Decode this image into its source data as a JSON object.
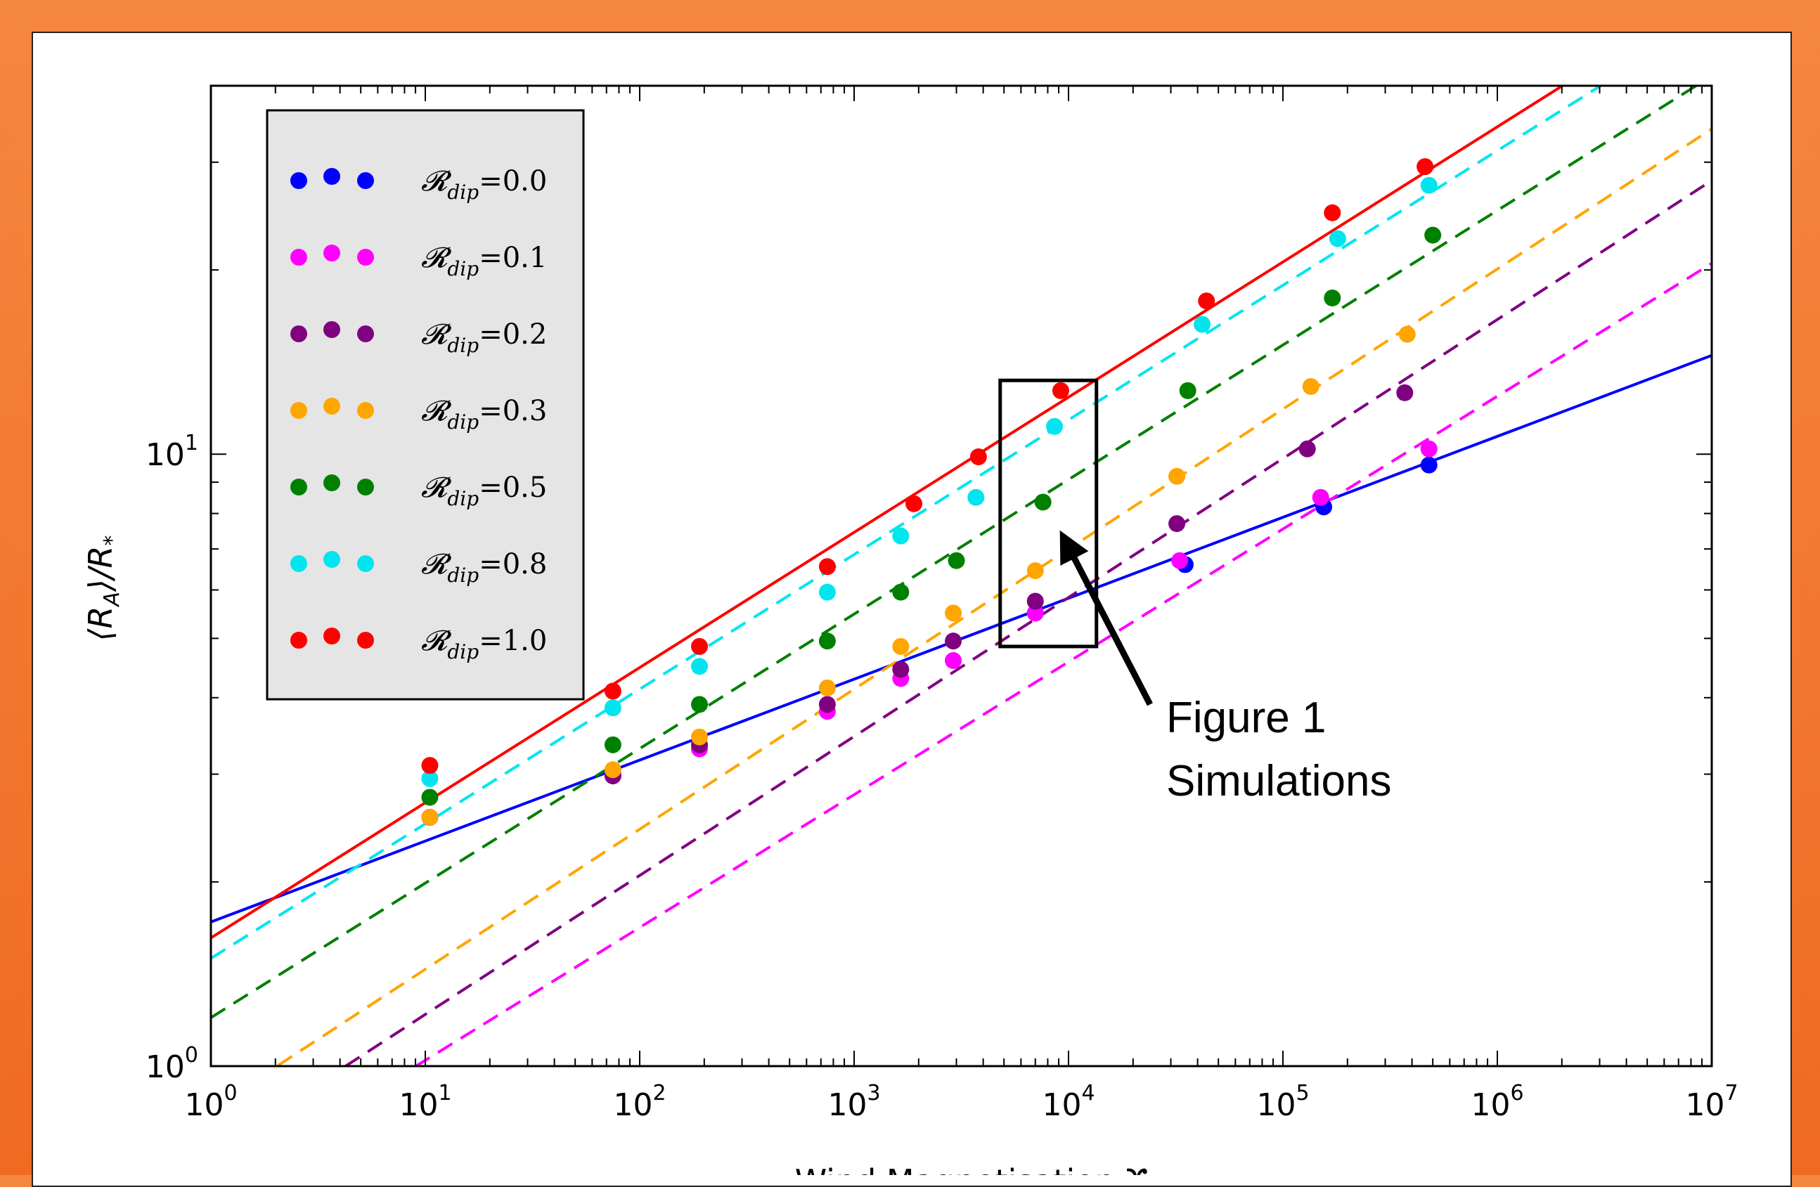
{
  "colors": {
    "background": "#f06a22",
    "legend_bg": "#e5e5e5",
    "series": {
      "0.0": "#0000ff",
      "0.1": "#ff00ff",
      "0.2": "#800080",
      "0.3": "#ffa500",
      "0.5": "#008000",
      "0.8": "#00e5ee",
      "1.0": "#ff0000"
    }
  },
  "chart_data": {
    "type": "scatter",
    "x_scale": "log",
    "y_scale": "log",
    "xlim": [
      1,
      10000000
    ],
    "ylim": [
      1,
      40
    ],
    "xlabel": "Wind Magnetisation  ϒ",
    "ylabel": "⟨R_A⟩/R_*",
    "x_ticks": [
      {
        "base": "10",
        "exp": "0"
      },
      {
        "base": "10",
        "exp": "1"
      },
      {
        "base": "10",
        "exp": "2"
      },
      {
        "base": "10",
        "exp": "3"
      },
      {
        "base": "10",
        "exp": "4"
      },
      {
        "base": "10",
        "exp": "5"
      },
      {
        "base": "10",
        "exp": "6"
      },
      {
        "base": "10",
        "exp": "7"
      }
    ],
    "y_ticks": [
      {
        "base": "10",
        "exp": "0"
      },
      {
        "base": "10",
        "exp": "1"
      }
    ],
    "legend_position": "upper-left",
    "series": [
      {
        "name": "R_dip=0.0",
        "legend_value": "0.0",
        "color": "#0000ff",
        "fit": {
          "style": "solid",
          "y_at_1": 1.72,
          "y_at_1e7": 14.5
        },
        "points": [
          [
            10.5,
            2.55
          ],
          [
            7000,
            5.5
          ],
          [
            35000,
            6.6
          ],
          [
            155000,
            8.2
          ],
          [
            480000,
            9.6
          ]
        ]
      },
      {
        "name": "R_dip=0.1",
        "legend_value": "0.1",
        "color": "#ff00ff",
        "fit": {
          "style": "dashed",
          "y_at_1": 0.62,
          "y_at_1e7": 20.5
        },
        "points": [
          [
            10.5,
            2.55
          ],
          [
            75,
            3.0
          ],
          [
            190,
            3.3
          ],
          [
            750,
            3.8
          ],
          [
            1650,
            4.3
          ],
          [
            2900,
            4.6
          ],
          [
            7000,
            5.5
          ],
          [
            33000,
            6.7
          ],
          [
            150000,
            8.5
          ],
          [
            480000,
            10.2
          ]
        ]
      },
      {
        "name": "R_dip=0.2",
        "legend_value": "0.2",
        "color": "#800080",
        "fit": {
          "style": "dashed",
          "y_at_1": 0.72,
          "y_at_1e7": 28.0
        },
        "points": [
          [
            75,
            2.98
          ],
          [
            190,
            3.35
          ],
          [
            750,
            3.9
          ],
          [
            1650,
            4.45
          ],
          [
            2900,
            4.95
          ],
          [
            7000,
            5.75
          ],
          [
            32000,
            7.7
          ],
          [
            130000,
            10.2
          ],
          [
            370000,
            12.6
          ]
        ]
      },
      {
        "name": "R_dip=0.3",
        "legend_value": "0.3",
        "color": "#ffa500",
        "fit": {
          "style": "dashed",
          "y_at_1": 0.85,
          "y_at_1e7": 34.0
        },
        "points": [
          [
            10.5,
            2.55
          ],
          [
            75,
            3.05
          ],
          [
            190,
            3.45
          ],
          [
            750,
            4.15
          ],
          [
            1650,
            4.85
          ],
          [
            2900,
            5.5
          ],
          [
            7000,
            6.45
          ],
          [
            32000,
            9.2
          ],
          [
            135000,
            12.9
          ],
          [
            380000,
            15.7
          ]
        ]
      },
      {
        "name": "R_dip=0.5",
        "legend_value": "0.5",
        "color": "#008000",
        "fit": {
          "style": "dashed",
          "y_at_1": 1.2,
          "y_at_1e7": 41.5
        },
        "points": [
          [
            10.5,
            2.75
          ],
          [
            75,
            3.35
          ],
          [
            190,
            3.9
          ],
          [
            750,
            4.95
          ],
          [
            1650,
            5.95
          ],
          [
            3000,
            6.7
          ],
          [
            7600,
            8.35
          ],
          [
            36000,
            12.7
          ],
          [
            170000,
            18.0
          ],
          [
            500000,
            22.8
          ]
        ]
      },
      {
        "name": "R_dip=0.8",
        "legend_value": "0.8",
        "color": "#00e5ee",
        "fit": {
          "style": "dashed",
          "y_at_1": 1.5,
          "y_at_1e7": 52.0
        },
        "points": [
          [
            10.5,
            2.95
          ],
          [
            75,
            3.85
          ],
          [
            190,
            4.5
          ],
          [
            750,
            5.95
          ],
          [
            1650,
            7.35
          ],
          [
            3700,
            8.5
          ],
          [
            8600,
            11.1
          ],
          [
            42000,
            16.3
          ],
          [
            180000,
            22.5
          ],
          [
            480000,
            27.5
          ]
        ]
      },
      {
        "name": "R_dip=1.0",
        "legend_value": "1.0",
        "color": "#ff0000",
        "fit": {
          "style": "solid",
          "y_at_1": 1.62,
          "y_at_1e7": 57.0
        },
        "points": [
          [
            10.5,
            3.1
          ],
          [
            75,
            4.1
          ],
          [
            190,
            4.85
          ],
          [
            750,
            6.55
          ],
          [
            1900,
            8.3
          ],
          [
            3800,
            9.9
          ],
          [
            9200,
            12.7
          ],
          [
            44000,
            17.8
          ],
          [
            170000,
            24.8
          ],
          [
            460000,
            29.5
          ]
        ]
      }
    ],
    "annotations": [
      {
        "type": "rectangle",
        "x_range": [
          4800,
          13500
        ],
        "y_range": [
          4.85,
          13.2
        ]
      },
      {
        "type": "arrow",
        "from": [
          24000,
          3.9
        ],
        "to": [
          9400,
          7.35
        ],
        "label_lines": [
          "Figure 1",
          "Simulations"
        ]
      }
    ]
  },
  "legend": {
    "entries": [
      {
        "symbol": "𝓡",
        "sub": "dip",
        "value": "=0.0"
      },
      {
        "symbol": "𝓡",
        "sub": "dip",
        "value": "=0.1"
      },
      {
        "symbol": "𝓡",
        "sub": "dip",
        "value": "=0.2"
      },
      {
        "symbol": "𝓡",
        "sub": "dip",
        "value": "=0.3"
      },
      {
        "symbol": "𝓡",
        "sub": "dip",
        "value": "=0.5"
      },
      {
        "symbol": "𝓡",
        "sub": "dip",
        "value": "=0.8"
      },
      {
        "symbol": "𝓡",
        "sub": "dip",
        "value": "=1.0"
      }
    ]
  },
  "annotation_text": {
    "line1": "Figure 1",
    "line2": "Simulations"
  },
  "axis_titles": {
    "y_main": "⟨R",
    "y_sub_A": "A",
    "y_rest": "⟩/R",
    "y_sub_star": "*",
    "x": "Wind Magnetisation  ϒ"
  }
}
